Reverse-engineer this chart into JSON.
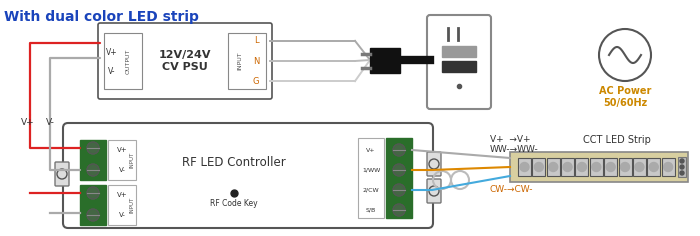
{
  "title": "With dual color LED strip",
  "title_color": "#1a44bb",
  "title_fontsize": 10,
  "bg_color": "#ffffff",
  "psu_label": "12V/24V\nCV PSU",
  "ac_label": "AC Power\n50/60Hz",
  "ac_color": "#cc8800",
  "controller_label": "RF LED Controller",
  "controller_sublabel": "RF Code Key",
  "strip_label": "CCT LED Strip",
  "ann1": "V+  →V+",
  "ann2": "WW-→WW-",
  "ann3": "CW-→CW-",
  "orange_color": "#dd8800",
  "blue_color": "#44aadd",
  "gray_color": "#aaaaaa",
  "red_color": "#dd2222",
  "green_color": "#2a6e2a",
  "dark_color": "#333333"
}
